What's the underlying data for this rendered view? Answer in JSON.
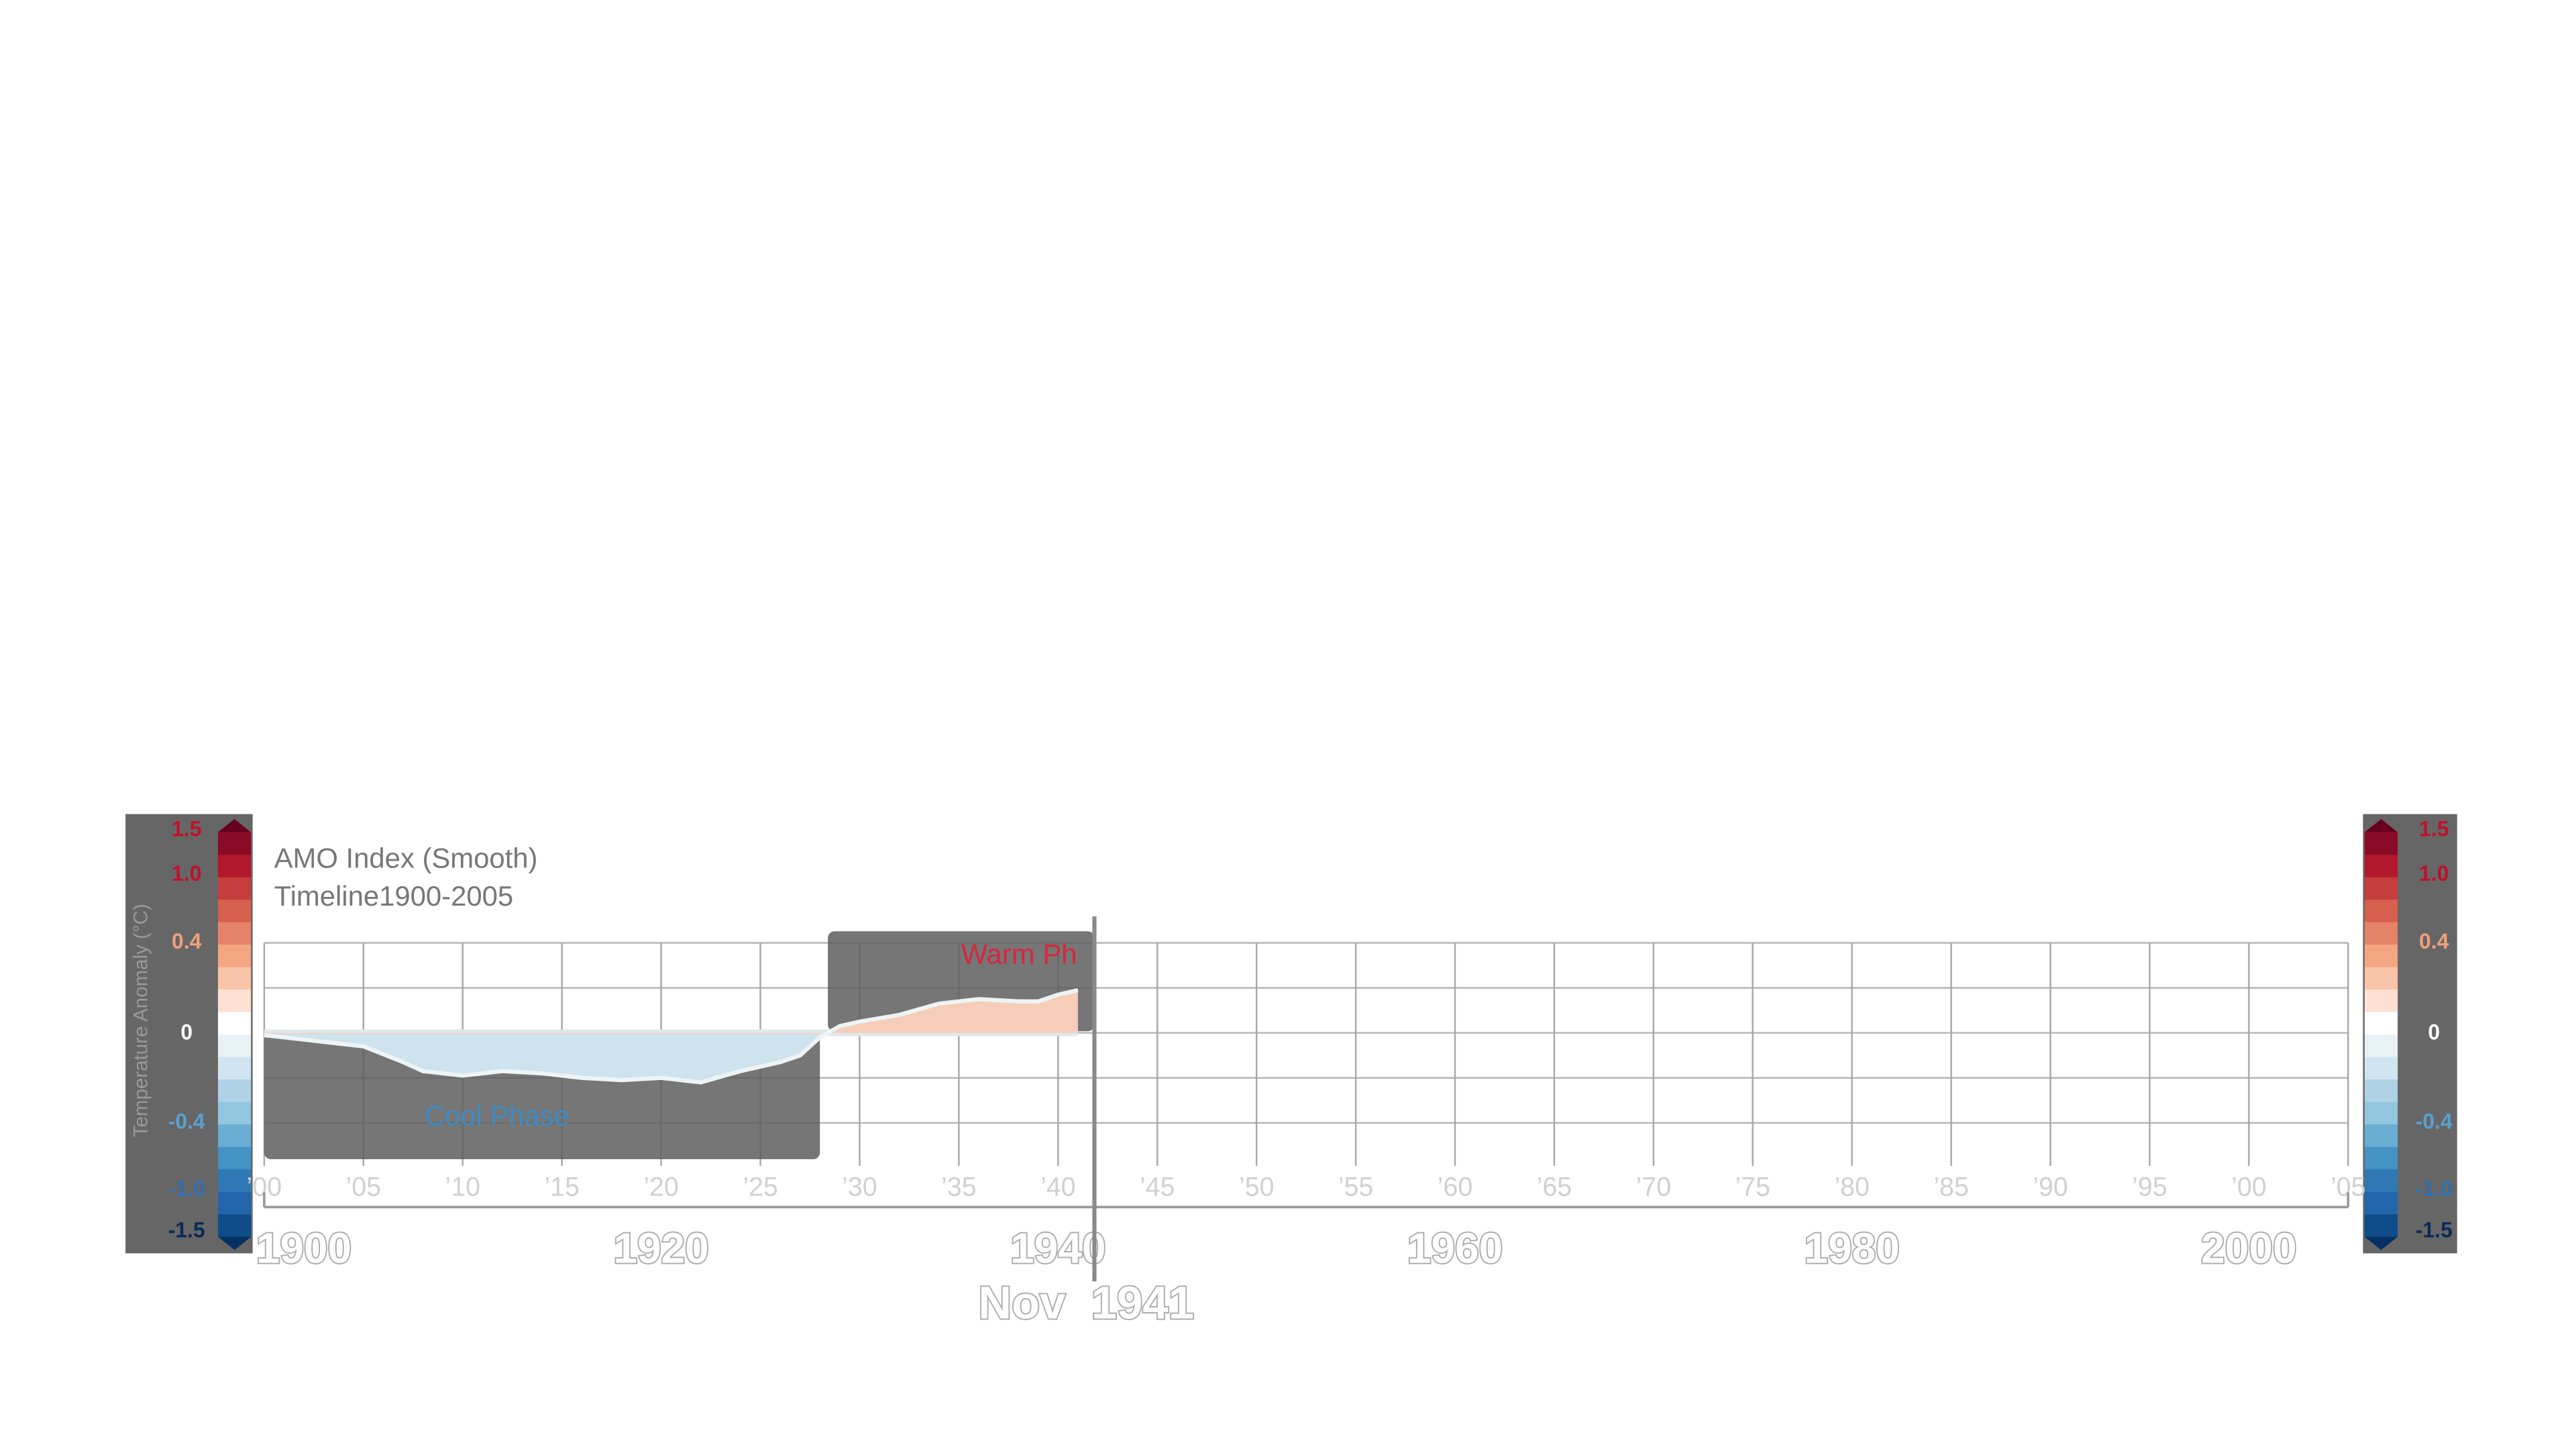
{
  "chart_data": {
    "type": "area",
    "title": "AMO Index (Smooth)",
    "subtitle": "Timeline1900-2005",
    "x": [
      1900,
      1902,
      1905,
      1907,
      1908,
      1910,
      1912,
      1914,
      1916,
      1918,
      1920,
      1922,
      1924,
      1926,
      1927,
      1928,
      1929,
      1930,
      1932,
      1934,
      1936,
      1938,
      1939,
      1940,
      1941
    ],
    "values": [
      -0.01,
      -0.03,
      -0.06,
      -0.13,
      -0.17,
      -0.19,
      -0.17,
      -0.18,
      -0.2,
      -0.21,
      -0.2,
      -0.22,
      -0.17,
      -0.13,
      -0.1,
      -0.02,
      0.03,
      0.05,
      0.08,
      0.13,
      0.15,
      0.14,
      0.14,
      0.17,
      0.19
    ],
    "xlim": [
      1900,
      2005
    ],
    "ylim": [
      -0.4,
      0.4
    ],
    "yticks": [
      -0.4,
      -0.2,
      0,
      0.2,
      0.4
    ],
    "grid": true,
    "xticks": [
      {
        "value": 1900,
        "label": "’00"
      },
      {
        "value": 1905,
        "label": "’05"
      },
      {
        "value": 1910,
        "label": "’10"
      },
      {
        "value": 1915,
        "label": "’15"
      },
      {
        "value": 1920,
        "label": "’20"
      },
      {
        "value": 1925,
        "label": "’25"
      },
      {
        "value": 1930,
        "label": "’30"
      },
      {
        "value": 1935,
        "label": "’35"
      },
      {
        "value": 1940,
        "label": "’40"
      },
      {
        "value": 1945,
        "label": "’45"
      },
      {
        "value": 1950,
        "label": "’50"
      },
      {
        "value": 1955,
        "label": "’55"
      },
      {
        "value": 1960,
        "label": "’60"
      },
      {
        "value": 1965,
        "label": "’65"
      },
      {
        "value": 1970,
        "label": "’70"
      },
      {
        "value": 1975,
        "label": "’75"
      },
      {
        "value": 1980,
        "label": "’80"
      },
      {
        "value": 1985,
        "label": "’85"
      },
      {
        "value": 1990,
        "label": "’90"
      },
      {
        "value": 1995,
        "label": "’95"
      },
      {
        "value": 2000,
        "label": "’00"
      },
      {
        "value": 2005,
        "label": "’05"
      }
    ],
    "major_xticks": [
      1900,
      1920,
      1940,
      1960,
      1980,
      2000
    ],
    "current": {
      "value": 1941.83,
      "label": "Nov  1941"
    },
    "phases": [
      {
        "label": "Cool Phase",
        "start": 1900,
        "end": 1928,
        "color": "#3d8cc4"
      },
      {
        "label": "Warm Ph",
        "start": 1928.4,
        "end": 1941.83,
        "color": "#d7263d"
      }
    ],
    "colorbar": {
      "title": "Temperature Anomaly (°C)",
      "colors": [
        "#67001f",
        "#8b0a26",
        "#b2182b",
        "#c43c3c",
        "#d6604d",
        "#e58368",
        "#f4a582",
        "#f8c4a8",
        "#fde0d2",
        "#ffffff",
        "#e8f1f6",
        "#d1e5f0",
        "#b0d2e6",
        "#92c5de",
        "#6aaed4",
        "#4393c3",
        "#2f78b5",
        "#2166ac",
        "#0f4c8a",
        "#053061"
      ],
      "ticks": [
        1.5,
        {
          "value": 1,
          "label": "1.0"
        },
        0.4,
        0,
        -0.4,
        {
          "value": -1,
          "label": "-1.0"
        },
        -1.5
      ],
      "tick_colors": [
        "#c0102a",
        "#c0102a",
        "#f0a07e",
        "#ffffff",
        "#5aa0d0",
        "#2f6fb0",
        "#0a2a55"
      ]
    }
  }
}
